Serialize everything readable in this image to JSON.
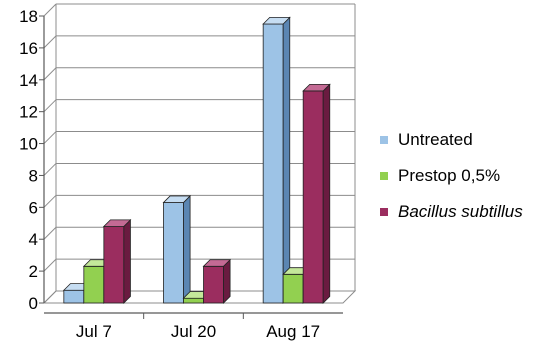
{
  "chart_data": {
    "type": "bar",
    "title": "",
    "xlabel": "",
    "ylabel": "",
    "categories": [
      "Jul 7",
      "Jul 20",
      "Aug 17"
    ],
    "ylim": [
      0,
      18
    ],
    "yticks": [
      0,
      2,
      4,
      6,
      8,
      10,
      12,
      14,
      16,
      18
    ],
    "grid": true,
    "legend_position": "right",
    "style": "3d-clustered-column",
    "series": [
      {
        "name": "Untreated",
        "values": [
          0.8,
          6.3,
          17.5
        ],
        "color": "#9dc3e6",
        "side": "#5b86b3",
        "top": "#c6ddf2"
      },
      {
        "name": "Prestop 0,5%",
        "values": [
          2.3,
          0.3,
          1.8
        ],
        "color": "#92d050",
        "side": "#5f9a26",
        "top": "#c4e89a"
      },
      {
        "name": "Bacillus subtillus",
        "values": [
          4.8,
          2.3,
          13.3
        ],
        "color": "#9b2d5f",
        "side": "#6a1b40",
        "top": "#c46a94",
        "italic": true
      }
    ]
  }
}
